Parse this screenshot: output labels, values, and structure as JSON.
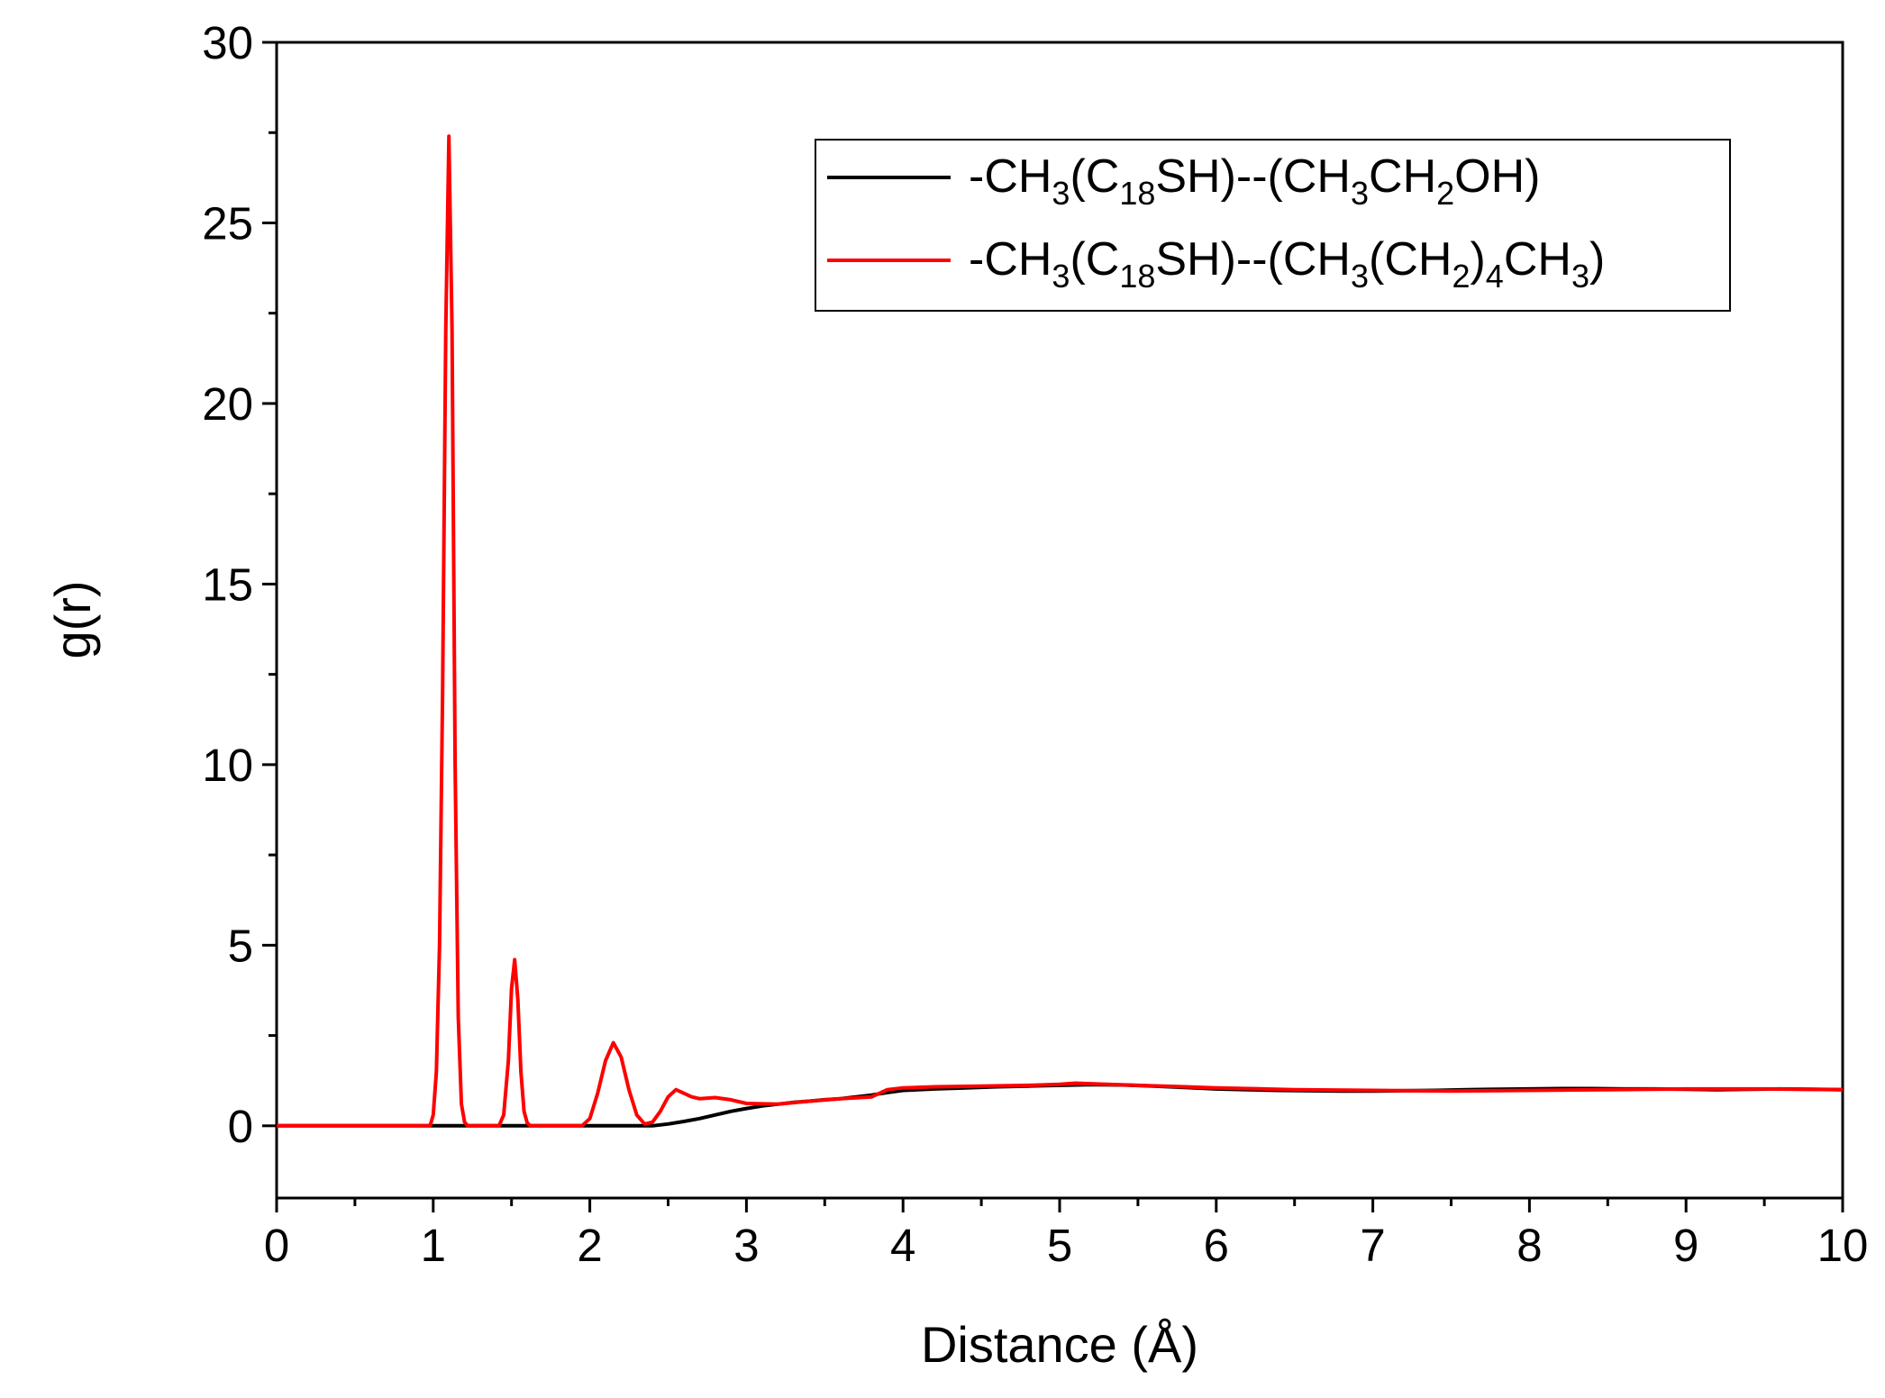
{
  "chart_data": {
    "type": "line",
    "xlabel": "Distance (Å)",
    "ylabel": "g(r)",
    "xlim": [
      0,
      10
    ],
    "ylim": [
      -2,
      30
    ],
    "xticks": [
      "0",
      "1",
      "2",
      "3",
      "4",
      "5",
      "6",
      "7",
      "8",
      "9",
      "10"
    ],
    "yticks": [
      "0",
      "5",
      "10",
      "15",
      "20",
      "25",
      "30"
    ],
    "grid": false,
    "legend_position": "top-right",
    "series": [
      {
        "name": "-CH3(C18SH)--(CH3CH2OH)",
        "name_parts": [
          {
            "t": "-CH",
            "sub": false
          },
          {
            "t": "3",
            "sub": true
          },
          {
            "t": "(C",
            "sub": false
          },
          {
            "t": "18",
            "sub": true
          },
          {
            "t": "SH)--(CH",
            "sub": false
          },
          {
            "t": "3",
            "sub": true
          },
          {
            "t": "CH",
            "sub": false
          },
          {
            "t": "2",
            "sub": true
          },
          {
            "t": "OH)",
            "sub": false
          }
        ],
        "color": "#000000",
        "x": [
          0,
          2.4,
          2.5,
          2.6,
          2.7,
          2.8,
          2.9,
          3.0,
          3.1,
          3.2,
          3.3,
          3.4,
          3.5,
          3.6,
          3.7,
          3.8,
          3.9,
          4.0,
          4.2,
          4.4,
          4.6,
          4.8,
          5.0,
          5.2,
          5.4,
          5.6,
          5.8,
          6.0,
          6.2,
          6.4,
          6.6,
          6.8,
          7.0,
          7.2,
          7.4,
          7.6,
          7.8,
          8.0,
          8.2,
          8.4,
          8.6,
          8.8,
          9.0,
          9.2,
          9.4,
          9.6,
          9.8,
          10.0
        ],
        "y": [
          0,
          0,
          0.05,
          0.12,
          0.2,
          0.3,
          0.4,
          0.48,
          0.55,
          0.6,
          0.65,
          0.68,
          0.72,
          0.75,
          0.8,
          0.85,
          0.92,
          0.98,
          1.02,
          1.05,
          1.08,
          1.1,
          1.12,
          1.14,
          1.13,
          1.1,
          1.06,
          1.02,
          1.0,
          0.98,
          0.97,
          0.96,
          0.96,
          0.97,
          0.98,
          1.0,
          1.01,
          1.02,
          1.03,
          1.03,
          1.02,
          1.02,
          1.01,
          1.0,
          1.01,
          1.02,
          1.01,
          1.0
        ]
      },
      {
        "name": "-CH3(C18SH)--(CH3(CH2)4CH3)",
        "name_parts": [
          {
            "t": "-CH",
            "sub": false
          },
          {
            "t": "3",
            "sub": true
          },
          {
            "t": "(C",
            "sub": false
          },
          {
            "t": "18",
            "sub": true
          },
          {
            "t": "SH)--(CH",
            "sub": false
          },
          {
            "t": "3",
            "sub": true
          },
          {
            "t": "(CH",
            "sub": false
          },
          {
            "t": "2",
            "sub": true
          },
          {
            "t": ")",
            "sub": false
          },
          {
            "t": "4",
            "sub": true
          },
          {
            "t": "CH",
            "sub": false
          },
          {
            "t": "3",
            "sub": true
          },
          {
            "t": ")",
            "sub": false
          }
        ],
        "color": "#ff0000",
        "x": [
          0,
          0.98,
          1.0,
          1.02,
          1.04,
          1.06,
          1.08,
          1.1,
          1.12,
          1.14,
          1.16,
          1.18,
          1.2,
          1.22,
          1.42,
          1.45,
          1.48,
          1.5,
          1.52,
          1.54,
          1.56,
          1.58,
          1.6,
          1.62,
          1.64,
          1.95,
          2.0,
          2.05,
          2.1,
          2.15,
          2.2,
          2.25,
          2.3,
          2.35,
          2.4,
          2.45,
          2.5,
          2.55,
          2.6,
          2.65,
          2.7,
          2.8,
          2.9,
          3.0,
          3.2,
          3.4,
          3.6,
          3.8,
          3.9,
          4.0,
          4.2,
          4.5,
          4.8,
          5.0,
          5.1,
          5.3,
          5.5,
          5.8,
          6.0,
          6.5,
          7.0,
          7.5,
          8.0,
          8.5,
          9.0,
          9.5,
          10.0
        ],
        "y": [
          0,
          0,
          0.3,
          1.5,
          5.0,
          12.0,
          22.0,
          27.4,
          22.0,
          10.0,
          3.0,
          0.6,
          0.1,
          0,
          0,
          0.3,
          1.8,
          3.8,
          4.6,
          3.5,
          1.5,
          0.4,
          0.08,
          0,
          0,
          0,
          0.2,
          0.9,
          1.8,
          2.3,
          1.9,
          1.0,
          0.3,
          0.05,
          0.1,
          0.4,
          0.8,
          1.0,
          0.9,
          0.8,
          0.75,
          0.78,
          0.72,
          0.62,
          0.6,
          0.68,
          0.75,
          0.8,
          1.0,
          1.05,
          1.08,
          1.1,
          1.12,
          1.15,
          1.18,
          1.15,
          1.12,
          1.08,
          1.05,
          1.0,
          0.98,
          0.96,
          0.98,
          1.0,
          1.02,
          1.02,
          1.0
        ]
      }
    ]
  }
}
